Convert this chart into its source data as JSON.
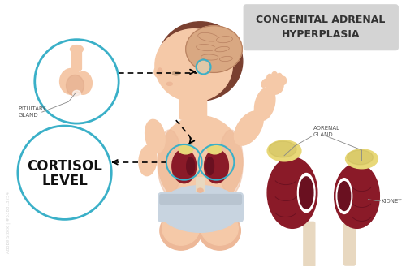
{
  "title": "CONGENITAL ADRENAL\nHYPERPLASIA",
  "title_box_color": "#d4d4d4",
  "title_text_color": "#333333",
  "background_color": "#ffffff",
  "labels": {
    "pituitary_gland": "PITUITARY\nGLAND",
    "cortisol_level": "CORTISOL\nLEVEL",
    "adrenal_gland": "ADRENAL\nGLAND",
    "kidney": "KIDNEY"
  },
  "skin_color": "#f5c9a8",
  "skin_shadow": "#edb898",
  "skin_dark": "#e8a880",
  "brain_color": "#d9a882",
  "brain_line_color": "#b88060",
  "hair_color": "#7a4030",
  "diaper_color": "#c8d4e0",
  "diaper_shadow": "#b8c4d0",
  "kidney_body": "#8a1a28",
  "kidney_hilum": "#6a1020",
  "kidney_inner": "#b04050",
  "adrenal_color": "#e8d878",
  "adrenal_shadow": "#c8b858",
  "circle_color": "#3ab0c8",
  "pituitary_color": "#f5c8a8",
  "pituitary_shadow": "#e0a888",
  "ureter_color": "#e8d8c0",
  "arrow_color": "#222222",
  "label_color": "#555555",
  "label_line_color": "#888888",
  "watermark_color": "#bbbbbb",
  "adobe_text": "Adobe Stock | #538313254"
}
